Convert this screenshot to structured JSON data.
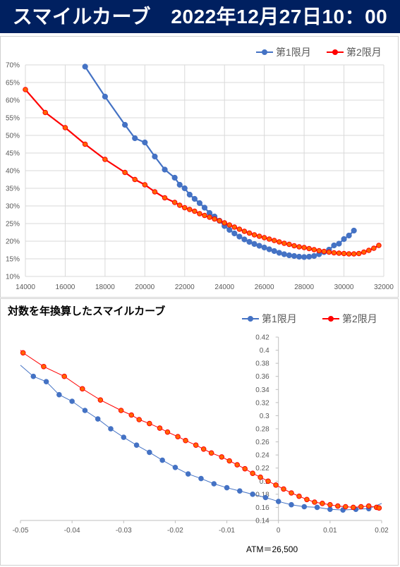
{
  "header": {
    "title": "スマイルカーブ　2022年12月27日10：00"
  },
  "chart_data": [
    {
      "type": "line",
      "title": "",
      "xlabel": "",
      "ylabel": "",
      "xlim": [
        14000,
        32000
      ],
      "ylim": [
        10,
        70
      ],
      "x_ticks": [
        "14000",
        "16000",
        "18000",
        "20000",
        "22000",
        "24000",
        "26000",
        "28000",
        "30000",
        "32000"
      ],
      "y_ticks": [
        "10%",
        "15%",
        "20%",
        "25%",
        "30%",
        "35%",
        "40%",
        "45%",
        "50%",
        "55%",
        "60%",
        "65%",
        "70%"
      ],
      "legend": "top-right",
      "grid": true,
      "series": [
        {
          "name": "第1限月",
          "color": "#4472C4",
          "points": [
            [
              17000,
              69.5
            ],
            [
              18000,
              61
            ],
            [
              19000,
              53
            ],
            [
              19500,
              49.2
            ],
            [
              20000,
              48
            ],
            [
              20500,
              44
            ],
            [
              21000,
              40.3
            ],
            [
              21500,
              38
            ],
            [
              21750,
              36
            ],
            [
              22000,
              35
            ],
            [
              22250,
              33.2
            ],
            [
              22500,
              32
            ],
            [
              22750,
              30.8
            ],
            [
              23000,
              29.5
            ],
            [
              23250,
              28
            ],
            [
              23500,
              27
            ],
            [
              23750,
              25.8
            ],
            [
              24000,
              24.3
            ],
            [
              24250,
              23.2
            ],
            [
              24500,
              22.2
            ],
            [
              24750,
              21.3
            ],
            [
              25000,
              20.5
            ],
            [
              25250,
              19.8
            ],
            [
              25500,
              19.2
            ],
            [
              25750,
              18.7
            ],
            [
              26000,
              18.2
            ],
            [
              26250,
              17.7
            ],
            [
              26500,
              17.2
            ],
            [
              26750,
              16.7
            ],
            [
              27000,
              16.3
            ],
            [
              27250,
              16
            ],
            [
              27500,
              15.8
            ],
            [
              27750,
              15.6
            ],
            [
              28000,
              15.5
            ],
            [
              28250,
              15.6
            ],
            [
              28500,
              15.8
            ],
            [
              28750,
              16.3
            ],
            [
              29000,
              16.9
            ],
            [
              29250,
              17.6
            ],
            [
              29500,
              18.8
            ],
            [
              29750,
              19.3
            ],
            [
              30000,
              20.6
            ],
            [
              30250,
              21.6
            ],
            [
              30500,
              23
            ]
          ]
        },
        {
          "name": "第2限月",
          "color": "#FF0000",
          "points": [
            [
              14000,
              63
            ],
            [
              15000,
              56.5
            ],
            [
              16000,
              52.2
            ],
            [
              17000,
              47.5
            ],
            [
              18000,
              43.2
            ],
            [
              19000,
              39.5
            ],
            [
              19500,
              37.5
            ],
            [
              20000,
              36
            ],
            [
              20500,
              34
            ],
            [
              21000,
              32.3
            ],
            [
              21500,
              31
            ],
            [
              21750,
              30.2
            ],
            [
              22000,
              29.5
            ],
            [
              22250,
              29
            ],
            [
              22500,
              28.5
            ],
            [
              22750,
              27.8
            ],
            [
              23000,
              27.3
            ],
            [
              23250,
              26.8
            ],
            [
              23500,
              26.3
            ],
            [
              23750,
              25.8
            ],
            [
              24000,
              25.2
            ],
            [
              24250,
              24.6
            ],
            [
              24500,
              24
            ],
            [
              24750,
              23.4
            ],
            [
              25000,
              22.8
            ],
            [
              25250,
              22.3
            ],
            [
              25500,
              21.8
            ],
            [
              25750,
              21.4
            ],
            [
              26000,
              21
            ],
            [
              26250,
              20.6
            ],
            [
              26500,
              20.2
            ],
            [
              26750,
              19.8
            ],
            [
              27000,
              19.4
            ],
            [
              27250,
              19.1
            ],
            [
              27500,
              18.7
            ],
            [
              27750,
              18.4
            ],
            [
              28000,
              18.2
            ],
            [
              28250,
              17.9
            ],
            [
              28500,
              17.6
            ],
            [
              28750,
              17.3
            ],
            [
              29000,
              17.1
            ],
            [
              29250,
              16.9
            ],
            [
              29500,
              16.7
            ],
            [
              29750,
              16.6
            ],
            [
              30000,
              16.5
            ],
            [
              30250,
              16.4
            ],
            [
              30500,
              16.4
            ],
            [
              30750,
              16.5
            ],
            [
              31000,
              16.9
            ],
            [
              31250,
              17.4
            ],
            [
              31500,
              18
            ],
            [
              31750,
              18.8
            ]
          ]
        }
      ]
    },
    {
      "type": "line",
      "title": "対数を年換算したスマイルカーブ",
      "xlabel": "",
      "ylabel": "",
      "xlim": [
        -0.05,
        0.02
      ],
      "ylim": [
        0.14,
        0.42
      ],
      "x_ticks": [
        "-0.05",
        "-0.04",
        "-0.03",
        "-0.02",
        "-0.01",
        "0",
        "0.01",
        "0.02"
      ],
      "y_ticks": [
        "0.14",
        "0.16",
        "0.18",
        "0.2",
        "0.22",
        "0.24",
        "0.26",
        "0.28",
        "0.3",
        "0.32",
        "0.34",
        "0.36",
        "0.38",
        "0.4",
        "0.42"
      ],
      "legend": "top-right",
      "grid": false,
      "annotation": "ATM＝26,500",
      "series": [
        {
          "name": "第1限月",
          "color": "#4472C4",
          "points": [
            [
              -0.05,
              0.377
            ],
            [
              -0.0475,
              0.36
            ],
            [
              -0.045,
              0.352
            ],
            [
              -0.0425,
              0.332
            ],
            [
              -0.04,
              0.322
            ],
            [
              -0.0375,
              0.308
            ],
            [
              -0.035,
              0.295
            ],
            [
              -0.0325,
              0.28
            ],
            [
              -0.03,
              0.267
            ],
            [
              -0.0275,
              0.255
            ],
            [
              -0.025,
              0.244
            ],
            [
              -0.0225,
              0.232
            ],
            [
              -0.02,
              0.221
            ],
            [
              -0.0175,
              0.211
            ],
            [
              -0.015,
              0.204
            ],
            [
              -0.0125,
              0.196
            ],
            [
              -0.01,
              0.19
            ],
            [
              -0.0075,
              0.185
            ],
            [
              -0.005,
              0.18
            ],
            [
              -0.0025,
              0.175
            ],
            [
              0,
              0.169
            ],
            [
              0.0025,
              0.164
            ],
            [
              0.005,
              0.161
            ],
            [
              0.0075,
              0.16
            ],
            [
              0.01,
              0.157
            ],
            [
              0.0125,
              0.156
            ],
            [
              0.015,
              0.157
            ],
            [
              0.0175,
              0.158
            ],
            [
              0.02,
              0.166
            ]
          ]
        },
        {
          "name": "第2限月",
          "color": "#FF0000",
          "points": [
            [
              -0.05,
              0.4
            ],
            [
              -0.0495,
              0.396
            ],
            [
              -0.0455,
              0.375
            ],
            [
              -0.0415,
              0.36
            ],
            [
              -0.038,
              0.341
            ],
            [
              -0.0345,
              0.324
            ],
            [
              -0.0305,
              0.308
            ],
            [
              -0.0285,
              0.301
            ],
            [
              -0.027,
              0.294
            ],
            [
              -0.025,
              0.288
            ],
            [
              -0.023,
              0.281
            ],
            [
              -0.0215,
              0.275
            ],
            [
              -0.0195,
              0.268
            ],
            [
              -0.018,
              0.262
            ],
            [
              -0.016,
              0.255
            ],
            [
              -0.0145,
              0.249
            ],
            [
              -0.013,
              0.243
            ],
            [
              -0.011,
              0.237
            ],
            [
              -0.0095,
              0.231
            ],
            [
              -0.008,
              0.225
            ],
            [
              -0.0065,
              0.219
            ],
            [
              -0.005,
              0.212
            ],
            [
              -0.0035,
              0.206
            ],
            [
              -0.002,
              0.2
            ],
            [
              -0.0005,
              0.194
            ],
            [
              0.001,
              0.188
            ],
            [
              0.0025,
              0.182
            ],
            [
              0.004,
              0.177
            ],
            [
              0.0055,
              0.172
            ],
            [
              0.007,
              0.168
            ],
            [
              0.0085,
              0.166
            ],
            [
              0.01,
              0.164
            ],
            [
              0.0115,
              0.162
            ],
            [
              0.013,
              0.161
            ],
            [
              0.0145,
              0.16
            ],
            [
              0.016,
              0.161
            ],
            [
              0.0175,
              0.162
            ],
            [
              0.019,
              0.16
            ],
            [
              0.0195,
              0.159
            ]
          ]
        }
      ]
    }
  ]
}
